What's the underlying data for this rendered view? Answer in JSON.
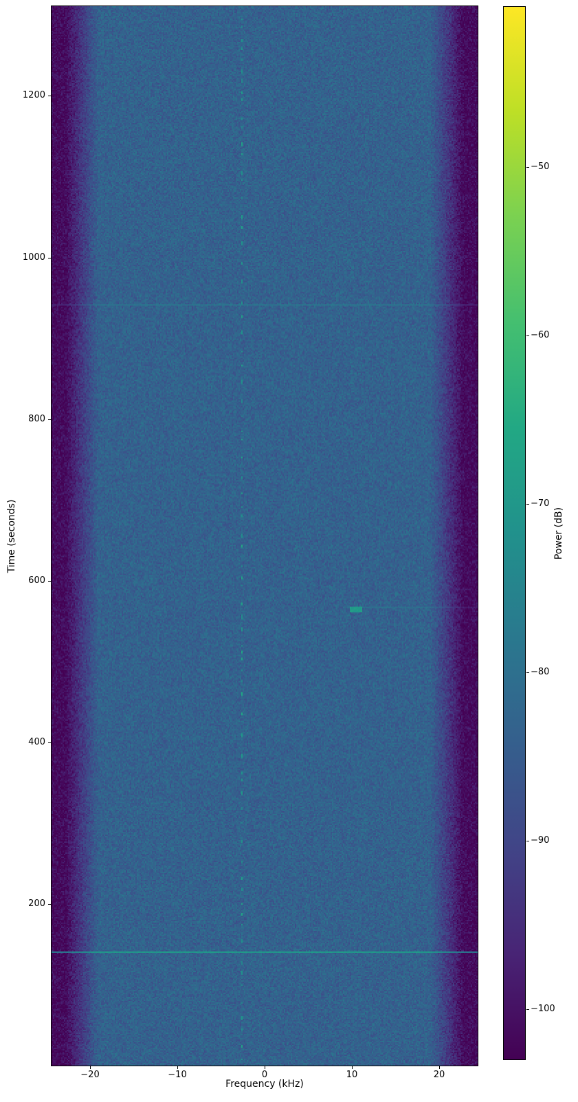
{
  "figure": {
    "background_color": "#ffffff",
    "axes_line_color": "#000000",
    "text_color": "#000000"
  },
  "chart_data": {
    "type": "heatmap",
    "subtype": "spectrogram",
    "title": "",
    "xlabel": "Frequency (kHz)",
    "ylabel": "Time (seconds)",
    "colorbar_label": "Power (dB)",
    "x_range_khz": [
      -24.4,
      24.4
    ],
    "xticks": [
      -20,
      -10,
      0,
      10,
      20
    ],
    "y_range_s": [
      0,
      1311
    ],
    "yticks": [
      200,
      400,
      600,
      800,
      1000,
      1200
    ],
    "color_range_db": [
      -103,
      -40.5
    ],
    "colorbar_ticks_db": [
      -50,
      -60,
      -70,
      -80,
      -90,
      -100
    ],
    "colormap": "viridis",
    "colormap_stops": [
      "#440154",
      "#482475",
      "#414487",
      "#355f8d",
      "#2a788e",
      "#21918c",
      "#22a884",
      "#44bf70",
      "#7ad151",
      "#bddf26",
      "#fde725"
    ],
    "grid": false,
    "legend": false,
    "background": {
      "in_band_level_db": -83.5,
      "noise_floor_db": -101.5,
      "band_edge_start_khz": 19.0,
      "band_edge_floor_khz": 22.8,
      "noise_amplitude_db": 5.5
    },
    "features": [
      {
        "kind": "vertical-dashed-line",
        "freq_khz": -2.6,
        "t_range_s": [
          0,
          1311
        ],
        "level_db_range": [
          -77,
          -67
        ],
        "desc": "intermittent narrowband spur running full height"
      },
      {
        "kind": "horizontal-line",
        "time_s": 140,
        "freq_range_khz": [
          -24.4,
          24.4
        ],
        "boost_db": 15,
        "desc": "bright broadband pulse across full bandwidth"
      },
      {
        "kind": "horizontal-line",
        "time_s": 941,
        "freq_range_khz": [
          -24.4,
          24.4
        ],
        "boost_db": 5,
        "desc": "faint broadband pulse"
      },
      {
        "kind": "horizontal-line",
        "time_s": 567,
        "freq_range_khz": [
          9.5,
          24.4
        ],
        "boost_db": 3.5,
        "desc": "very faint partial line right of burst"
      },
      {
        "kind": "burst",
        "time_s": 565,
        "duration_s": 5,
        "freq_range_khz": [
          9.7,
          11.1
        ],
        "level_db": -71,
        "desc": "short teal narrowband burst"
      }
    ]
  }
}
